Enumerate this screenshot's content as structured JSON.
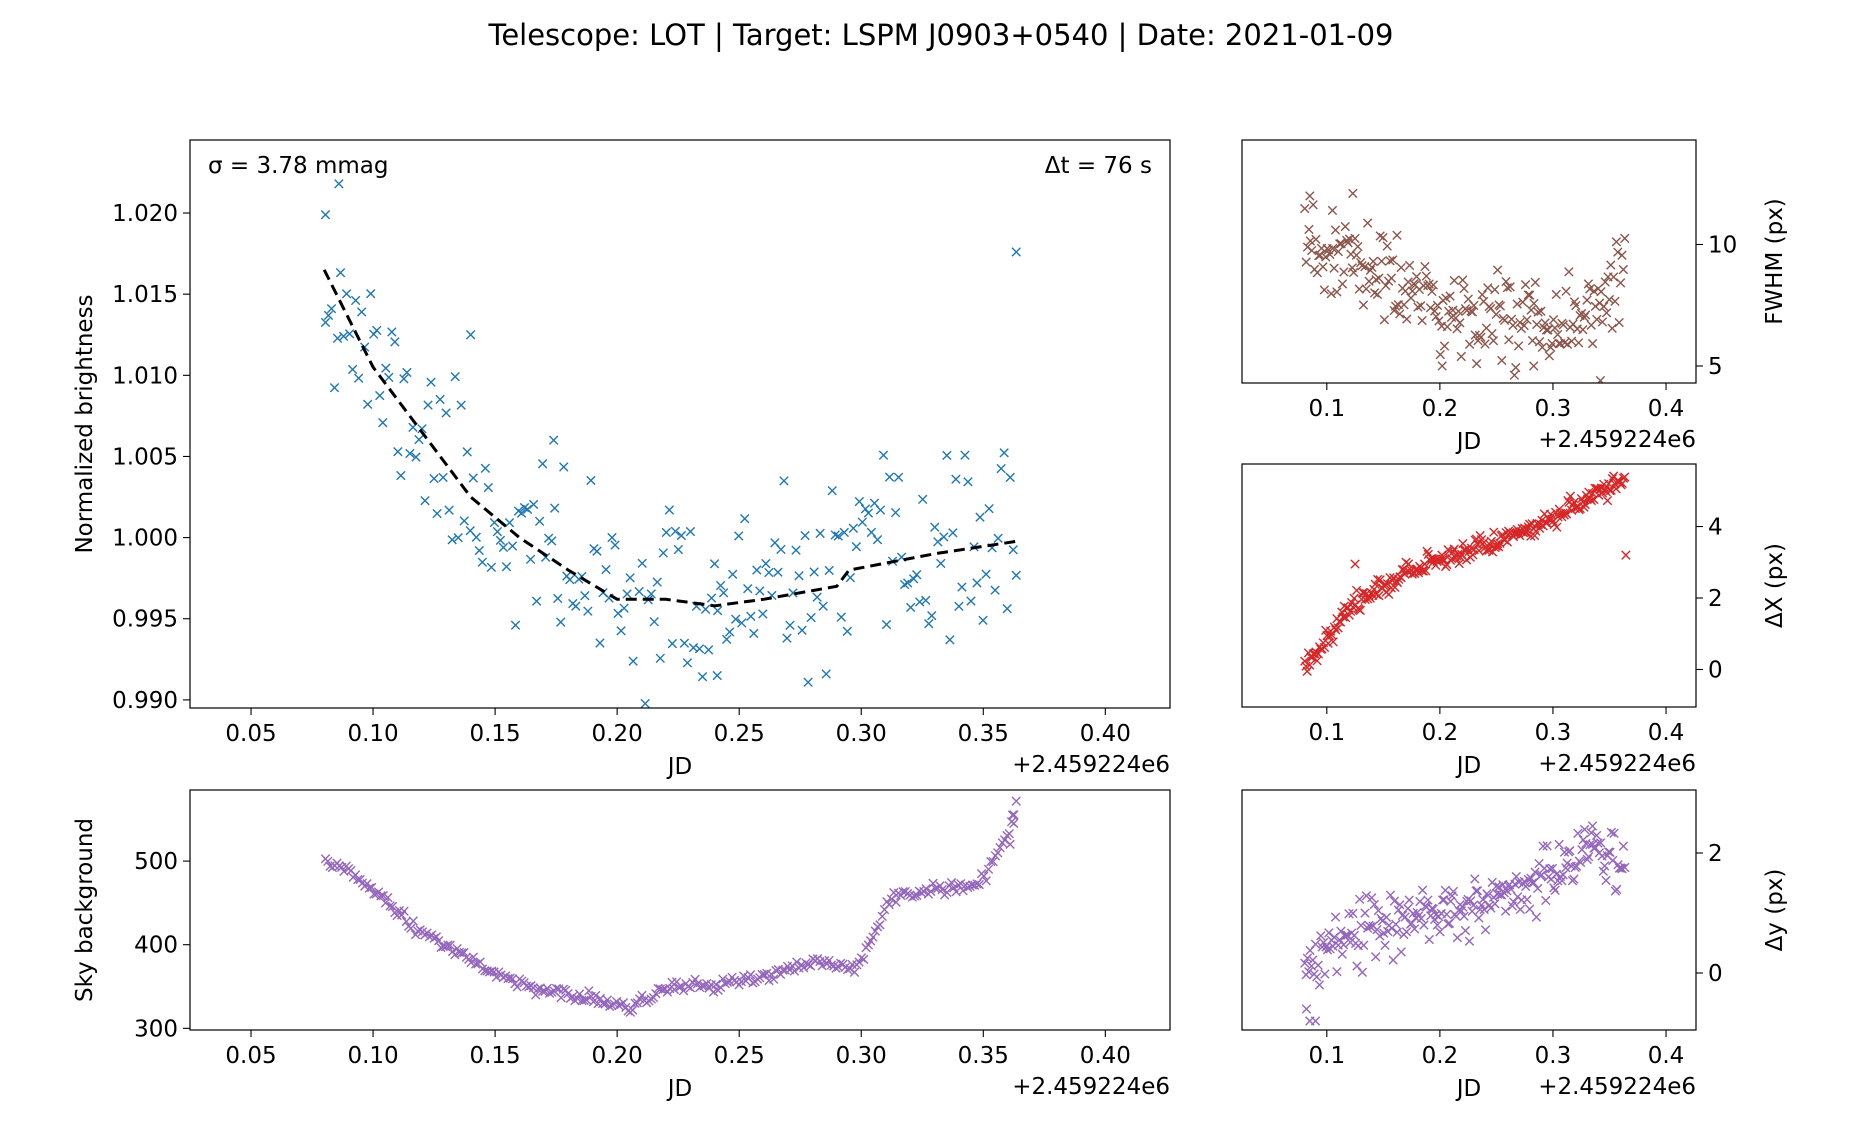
{
  "title": "Telescope: LOT  |  Target: LSPM J0903+0540  |  Date: 2021-01-09",
  "chart_data": [
    {
      "id": "lightcurve",
      "type": "scatter",
      "xlabel": "JD",
      "x_offset_label": "+2.459224e6",
      "ylabel": "Normalized brightness",
      "xlim": [
        0.025,
        0.4265
      ],
      "ylim": [
        0.9895,
        1.0245
      ],
      "xticks": [
        0.05,
        0.1,
        0.15,
        0.2,
        0.25,
        0.3,
        0.35,
        0.4
      ],
      "xtick_labels": [
        "0.05",
        "0.10",
        "0.15",
        "0.20",
        "0.25",
        "0.30",
        "0.35",
        "0.40"
      ],
      "yticks": [
        0.99,
        0.995,
        1.0,
        1.005,
        1.01,
        1.015,
        1.02
      ],
      "ytick_labels": [
        "0.990",
        "0.995",
        "1.000",
        "1.005",
        "1.010",
        "1.015",
        "1.020"
      ],
      "annotations": {
        "sigma": "σ = 3.78 mmag",
        "cadence": "Δt = 76 s"
      },
      "series": [
        {
          "marker": "x",
          "color": "#1f77b4",
          "gen": {
            "x0": 0.0805,
            "x1": 0.3635,
            "n": 230,
            "seed": 11,
            "noise": 0.00272,
            "curve": [
              [
                0.08,
                1.0165
              ],
              [
                0.1,
                1.0105
              ],
              [
                0.12,
                1.0065
              ],
              [
                0.14,
                1.0025
              ],
              [
                0.16,
                1.0
              ],
              [
                0.18,
                0.998
              ],
              [
                0.2,
                0.9962
              ],
              [
                0.22,
                0.9962
              ],
              [
                0.24,
                0.9958
              ],
              [
                0.26,
                0.9962
              ],
              [
                0.29,
                0.997
              ],
              [
                0.295,
                0.998
              ],
              [
                0.33,
                0.999
              ],
              [
                0.365,
                0.9998
              ]
            ]
          },
          "extra": [
            [
              0.086,
              1.0218
            ],
            [
              0.0805,
              1.0199
            ],
            [
              0.14,
              1.0125
            ],
            [
              0.174,
              1.006
            ],
            [
              0.3635,
              1.0176
            ],
            [
              0.241,
              0.9915
            ]
          ]
        },
        {
          "style": "dashed",
          "color": "#000000",
          "points": [
            [
              0.08,
              1.0165
            ],
            [
              0.1,
              1.0105
            ],
            [
              0.12,
              1.0065
            ],
            [
              0.14,
              1.0025
            ],
            [
              0.16,
              1.0
            ],
            [
              0.18,
              0.998
            ],
            [
              0.2,
              0.9962
            ],
            [
              0.22,
              0.9962
            ],
            [
              0.24,
              0.9958
            ],
            [
              0.26,
              0.9962
            ],
            [
              0.29,
              0.997
            ],
            [
              0.295,
              0.998
            ],
            [
              0.33,
              0.999
            ],
            [
              0.365,
              0.9998
            ]
          ]
        }
      ]
    },
    {
      "id": "fwhm",
      "type": "scatter",
      "xlabel": "JD",
      "x_offset_label": "+2.459224e6",
      "ylabel": "FWHM (px)",
      "xlim": [
        0.025,
        0.4265
      ],
      "ylim": [
        4.3,
        14.3
      ],
      "xticks": [
        0.1,
        0.2,
        0.3,
        0.4
      ],
      "xtick_labels": [
        "0.1",
        "0.2",
        "0.3",
        "0.4"
      ],
      "yticks": [
        5,
        10
      ],
      "ytick_labels": [
        "5",
        "10"
      ],
      "series": [
        {
          "marker": "x",
          "color": "#8c564b",
          "gen": {
            "x0": 0.0805,
            "x1": 0.3635,
            "n": 230,
            "seed": 23,
            "noise": 0.95,
            "curve": [
              [
                0.08,
                9.6
              ],
              [
                0.12,
                9.3
              ],
              [
                0.16,
                8.4
              ],
              [
                0.2,
                7.2
              ],
              [
                0.25,
                7.1
              ],
              [
                0.3,
                7.0
              ],
              [
                0.365,
                7.8
              ]
            ]
          },
          "extra": [
            [
              0.085,
              12.0
            ],
            [
              0.123,
              12.1
            ],
            [
              0.105,
              11.4
            ],
            [
              0.342,
              4.4
            ],
            [
              0.202,
              5.0
            ],
            [
              0.283,
              5.0
            ]
          ]
        }
      ]
    },
    {
      "id": "dx",
      "type": "scatter",
      "xlabel": "JD",
      "x_offset_label": "+2.459224e6",
      "ylabel": "ΔX (px)",
      "xlim": [
        0.025,
        0.4265
      ],
      "ylim": [
        -1.05,
        5.75
      ],
      "xticks": [
        0.1,
        0.2,
        0.3,
        0.4
      ],
      "xtick_labels": [
        "0.1",
        "0.2",
        "0.3",
        "0.4"
      ],
      "yticks": [
        0,
        2,
        4
      ],
      "ytick_labels": [
        "0",
        "2",
        "4"
      ],
      "series": [
        {
          "marker": "x",
          "color": "#d62728",
          "gen": {
            "x0": 0.0805,
            "x1": 0.3635,
            "n": 260,
            "seed": 37,
            "noise": 0.14,
            "curve": [
              [
                0.08,
                0.05
              ],
              [
                0.1,
                0.9
              ],
              [
                0.12,
                1.7
              ],
              [
                0.15,
                2.4
              ],
              [
                0.2,
                3.1
              ],
              [
                0.25,
                3.6
              ],
              [
                0.3,
                4.2
              ],
              [
                0.365,
                5.4
              ]
            ]
          },
          "extra": [
            [
              0.3645,
              3.2
            ],
            [
              0.125,
              2.95
            ]
          ]
        }
      ]
    },
    {
      "id": "sky",
      "type": "scatter",
      "xlabel": "JD",
      "x_offset_label": "+2.459224e6",
      "ylabel": "Sky background",
      "xlim": [
        0.025,
        0.4265
      ],
      "ylim": [
        298,
        585
      ],
      "xticks": [
        0.05,
        0.1,
        0.15,
        0.2,
        0.25,
        0.3,
        0.35,
        0.4
      ],
      "xtick_labels": [
        "0.05",
        "0.10",
        "0.15",
        "0.20",
        "0.25",
        "0.30",
        "0.35",
        "0.40"
      ],
      "yticks": [
        300,
        400,
        500
      ],
      "ytick_labels": [
        "300",
        "400",
        "500"
      ],
      "series": [
        {
          "marker": "x",
          "color": "#9467bd",
          "gen": {
            "x0": 0.0805,
            "x1": 0.3635,
            "n": 300,
            "seed": 51,
            "noise": 3.5,
            "curve": [
              [
                0.08,
                497
              ],
              [
                0.09,
                488
              ],
              [
                0.1,
                466
              ],
              [
                0.11,
                438
              ],
              [
                0.12,
                412
              ],
              [
                0.13,
                398
              ],
              [
                0.14,
                385
              ],
              [
                0.15,
                364
              ],
              [
                0.16,
                355
              ],
              [
                0.17,
                345
              ],
              [
                0.18,
                340
              ],
              [
                0.19,
                335
              ],
              [
                0.2,
                330
              ],
              [
                0.205,
                322
              ],
              [
                0.21,
                330
              ],
              [
                0.22,
                348
              ],
              [
                0.23,
                352
              ],
              [
                0.24,
                348
              ],
              [
                0.25,
                357
              ],
              [
                0.26,
                362
              ],
              [
                0.27,
                370
              ],
              [
                0.28,
                378
              ],
              [
                0.29,
                376
              ],
              [
                0.295,
                369
              ],
              [
                0.3,
                383
              ],
              [
                0.305,
                413
              ],
              [
                0.31,
                445
              ],
              [
                0.315,
                458
              ],
              [
                0.32,
                460
              ],
              [
                0.33,
                465
              ],
              [
                0.34,
                468
              ],
              [
                0.345,
                470
              ],
              [
                0.35,
                480
              ],
              [
                0.355,
                503
              ],
              [
                0.36,
                530
              ],
              [
                0.3635,
                570
              ]
            ]
          },
          "extra": [
            [
              0.362,
              555
            ],
            [
              0.3625,
              545
            ],
            [
              0.361,
              520
            ]
          ]
        }
      ]
    },
    {
      "id": "dy",
      "type": "scatter",
      "xlabel": "JD",
      "x_offset_label": "+2.459224e6",
      "ylabel": "Δy (px)",
      "xlim": [
        0.025,
        0.4265
      ],
      "ylim": [
        -0.95,
        3.05
      ],
      "xticks": [
        0.1,
        0.2,
        0.3,
        0.4
      ],
      "xtick_labels": [
        "0.1",
        "0.2",
        "0.3",
        "0.4"
      ],
      "yticks": [
        0,
        2
      ],
      "ytick_labels": [
        "0",
        "2"
      ],
      "series": [
        {
          "marker": "x",
          "color": "#9467bd",
          "gen": {
            "x0": 0.0805,
            "x1": 0.3635,
            "n": 240,
            "seed": 67,
            "noise": 0.24,
            "curve": [
              [
                0.08,
                0.2
              ],
              [
                0.12,
                0.55
              ],
              [
                0.16,
                0.85
              ],
              [
                0.2,
                1.05
              ],
              [
                0.25,
                1.25
              ],
              [
                0.3,
                1.6
              ],
              [
                0.33,
                2.0
              ],
              [
                0.365,
                1.95
              ]
            ]
          },
          "extra": [
            [
              0.085,
              -0.8
            ],
            [
              0.09,
              -0.8
            ],
            [
              0.082,
              -0.6
            ],
            [
              0.335,
              2.45
            ]
          ]
        }
      ]
    }
  ]
}
